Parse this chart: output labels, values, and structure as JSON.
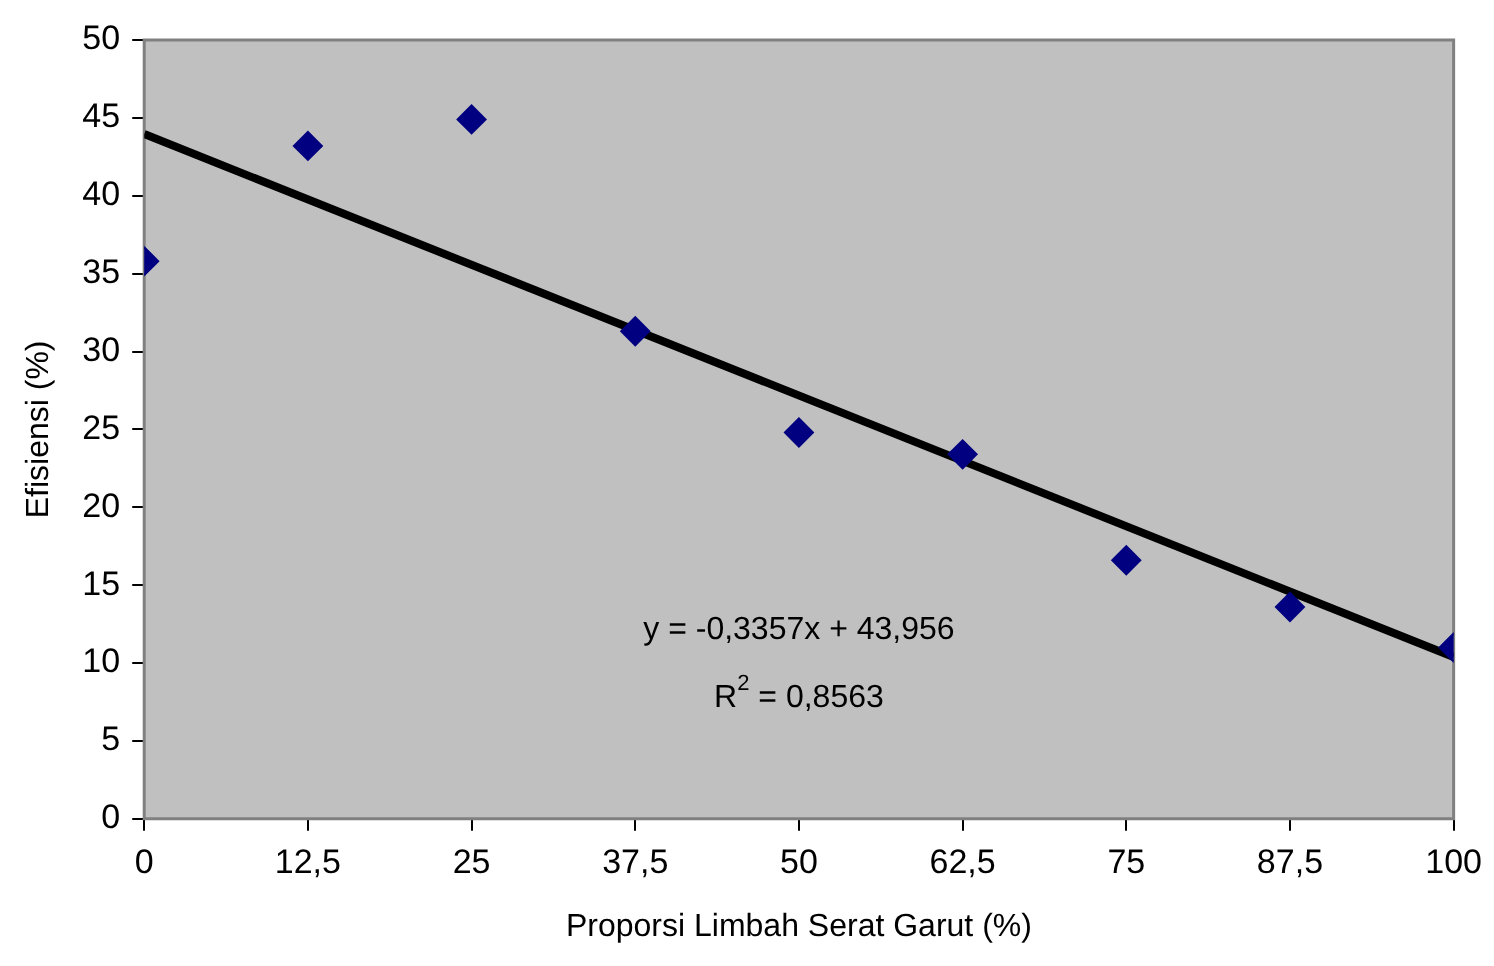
{
  "chart_data": {
    "type": "scatter",
    "xlabel": "Proporsi Limbah Serat Garut (%)",
    "ylabel": "Efisiensi (%)",
    "x": [
      0,
      12.5,
      25,
      37.5,
      50,
      62.5,
      75,
      87.5,
      100
    ],
    "series": [
      {
        "color": "#000080",
        "marker": "diamond",
        "values": [
          35.8,
          43.2,
          44.9,
          31.3,
          24.8,
          23.4,
          16.6,
          13.6,
          11.0
        ]
      },
      {
        "type": "line",
        "color": "#000000",
        "marker": "none",
        "x": [
          0,
          100
        ],
        "values": [
          43.96,
          10.39
        ]
      }
    ],
    "xlim": [
      0,
      100
    ],
    "xticks": [
      0,
      {
        "value": 12.5,
        "label": "12,5"
      },
      25,
      {
        "value": 37.5,
        "label": "37,5"
      },
      50,
      {
        "value": 62.5,
        "label": "62,5"
      },
      75,
      {
        "value": 87.5,
        "label": "87,5"
      },
      100
    ],
    "ylim": [
      0,
      50
    ],
    "yticks": [
      0,
      5,
      10,
      15,
      20,
      25,
      30,
      35,
      40,
      45,
      50
    ],
    "annotations": [
      "y = -0,3357x + 43,956",
      "R$^{2}$ = 0,8563"
    ]
  }
}
